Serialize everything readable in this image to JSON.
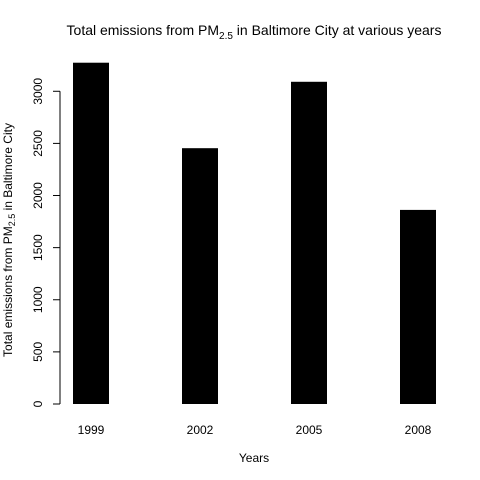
{
  "chart_data": {
    "type": "bar",
    "title": {
      "main": "Total emissions from PM",
      "subscript": "2.5",
      "rest": " in Baltimore City at various years"
    },
    "xlabel": "Years",
    "ylabel": {
      "main": "Total emissions from PM",
      "subscript": "2.5",
      "rest": " in Baltimore City"
    },
    "categories": [
      "1999",
      "2002",
      "2005",
      "2008"
    ],
    "values": [
      3274,
      2454,
      3091,
      1862
    ],
    "ylim": [
      0,
      3300
    ],
    "yticks": [
      "0",
      "500",
      "1000",
      "1500",
      "2000",
      "2500",
      "3000"
    ],
    "bar_color": "#000000",
    "grid": false,
    "legend": "none"
  }
}
